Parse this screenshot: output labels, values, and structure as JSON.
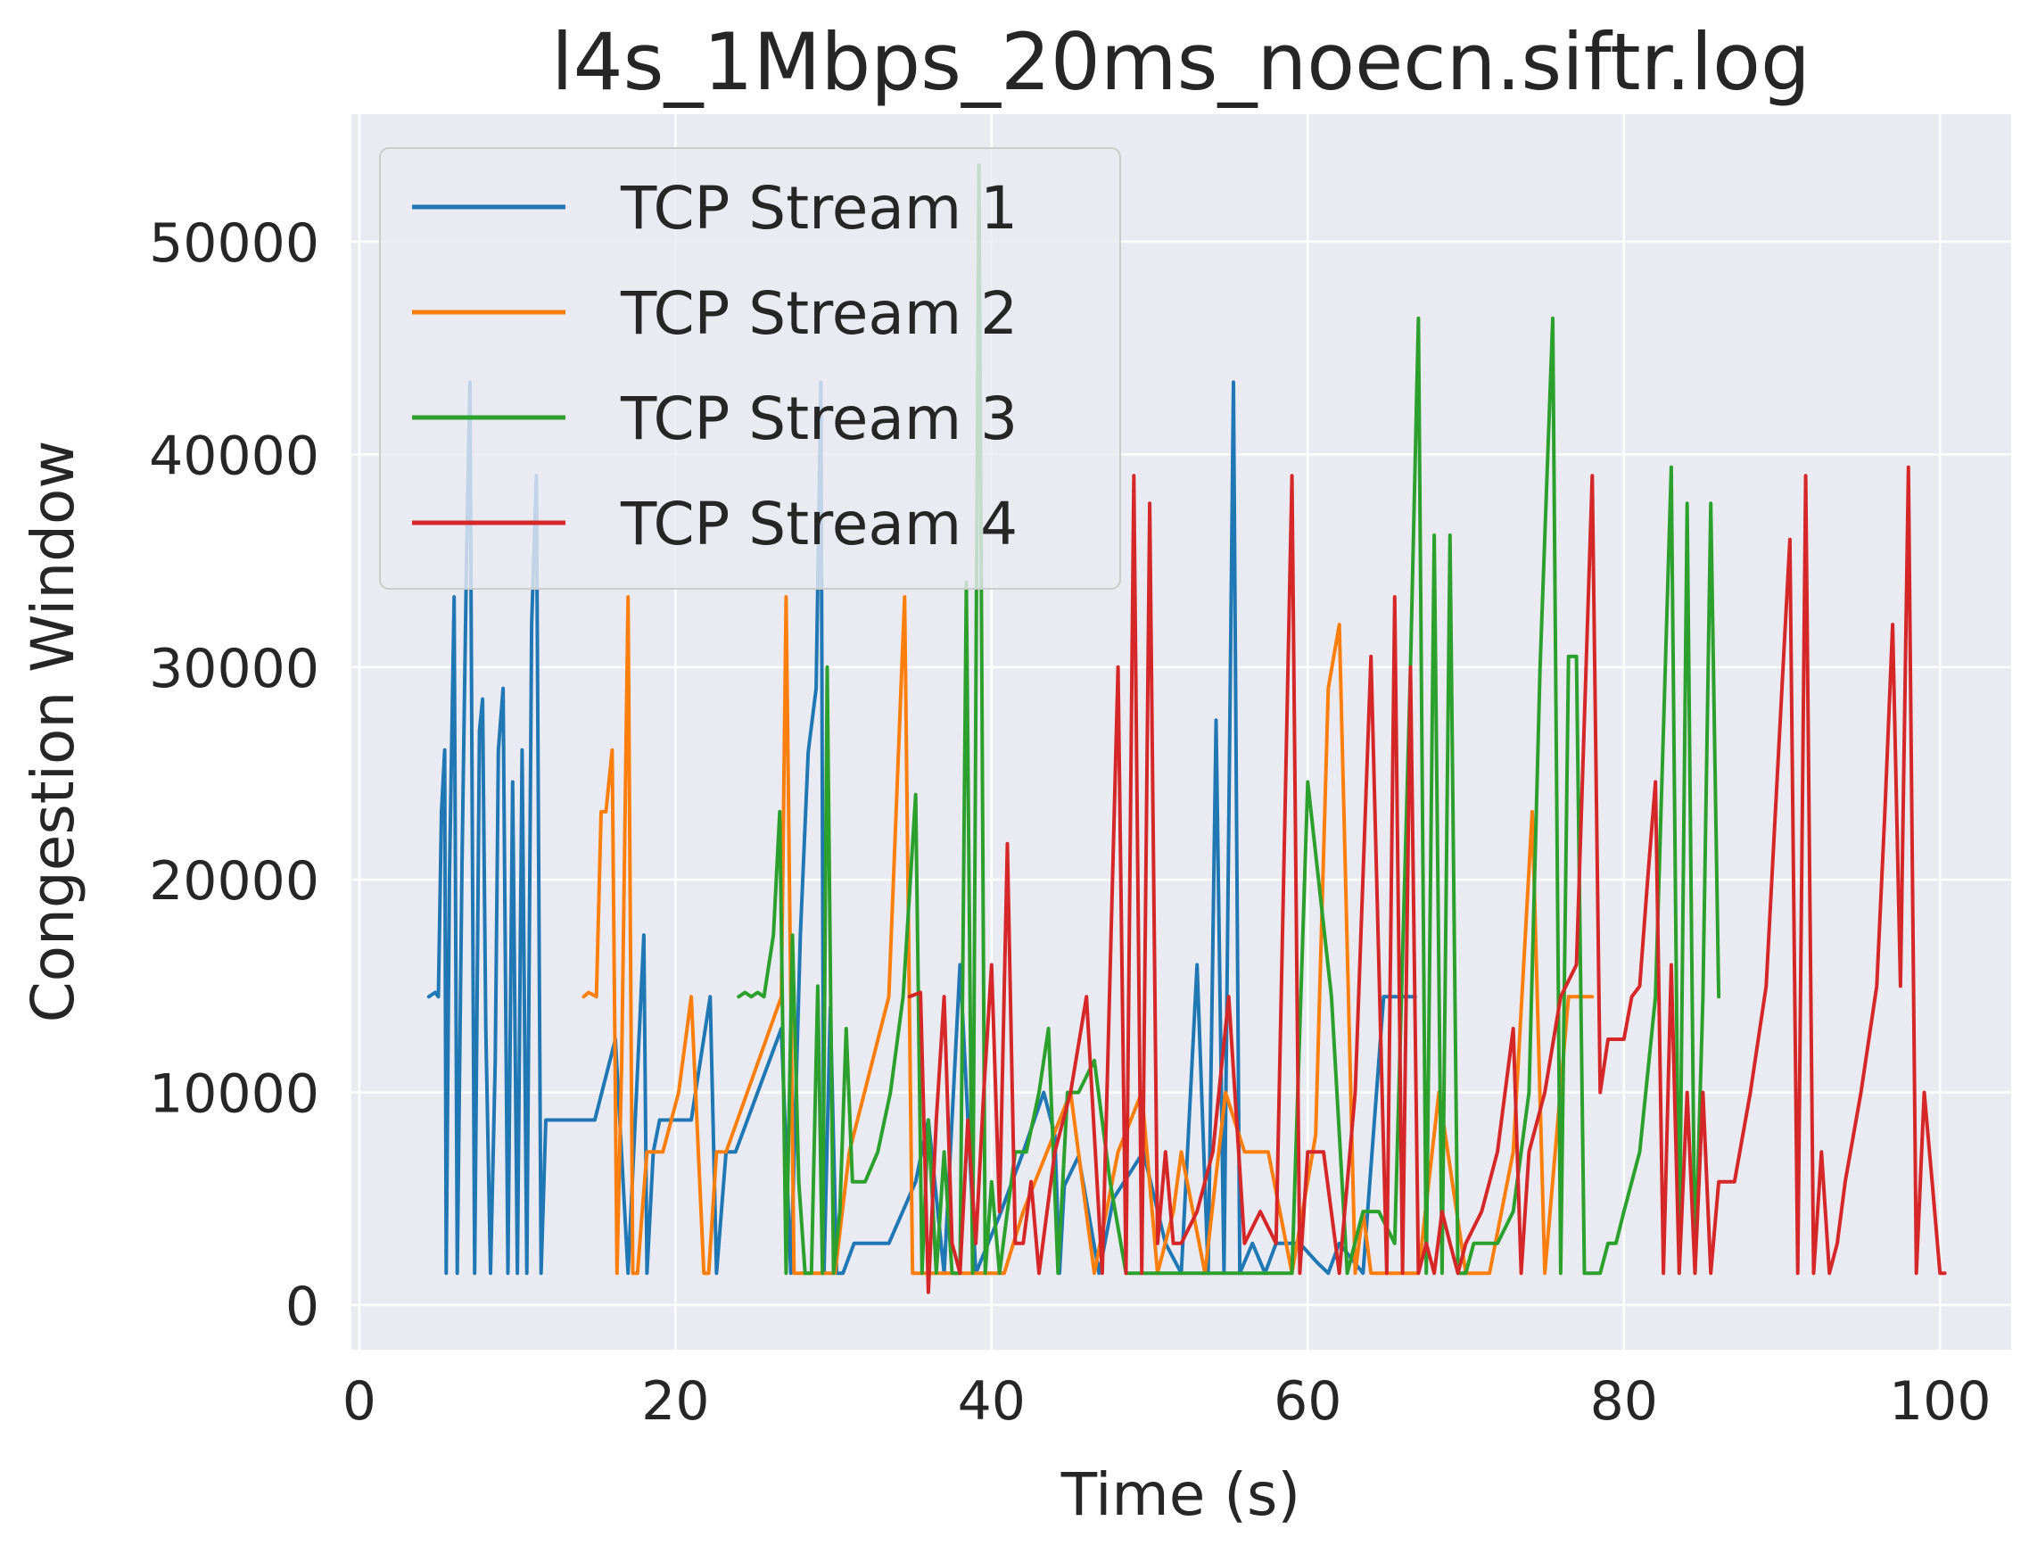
{
  "chart_data": {
    "type": "line",
    "title": "l4s_1Mbps_20ms_noecn.siftr.log",
    "xlabel": "Time (s)",
    "ylabel": "Congestion Window",
    "xlim": [
      -0.5,
      104.5
    ],
    "ylim": [
      -2100,
      56000
    ],
    "x_ticks": [
      0,
      20,
      40,
      60,
      80,
      100
    ],
    "x_tick_labels": [
      "0",
      "20",
      "40",
      "60",
      "80",
      "100"
    ],
    "y_ticks": [
      0,
      10000,
      20000,
      30000,
      40000,
      50000
    ],
    "y_tick_labels": [
      "0",
      "10000",
      "20000",
      "30000",
      "40000",
      "50000"
    ],
    "grid": true,
    "legend": {
      "position": "top-left"
    },
    "series": [
      {
        "name": "TCP Stream 1",
        "color": "#1f77b4",
        "x": [
          4.4,
          4.8,
          5.0,
          5.2,
          5.4,
          5.5,
          5.7,
          6.0,
          6.2,
          6.5,
          6.8,
          7.0,
          7.3,
          7.6,
          7.8,
          8.0,
          8.3,
          8.6,
          8.8,
          9.1,
          9.4,
          9.7,
          10.0,
          10.3,
          10.6,
          10.9,
          11.2,
          11.5,
          11.8,
          12.1,
          12.4,
          12.7,
          12.9,
          13.1,
          13.3,
          14.9,
          16.2,
          17.0,
          18.0,
          18.2,
          18.6,
          19.0,
          19.8,
          21.0,
          22.2,
          22.6,
          23.2,
          23.8,
          26.7,
          27.3,
          27.9,
          28.4,
          28.9,
          29.2,
          29.4,
          29.8,
          30.2,
          30.6,
          31.3,
          33.5,
          35.2,
          36.0,
          37.0,
          38.0,
          39.0,
          40.5,
          42.0,
          43.3,
          44.0,
          44.3,
          44.6,
          45.5,
          46.8,
          47.7,
          49.6,
          51.0,
          52.0,
          53.0,
          53.7,
          54.2,
          54.7,
          55.3,
          55.7,
          56.5,
          57.3,
          58.0,
          59.5,
          60.6,
          61.3,
          62.0,
          63.5,
          64.8,
          65.7,
          66.8
        ],
        "y": [
          14500,
          14700,
          14500,
          23200,
          26100,
          1500,
          20000,
          33300,
          1500,
          21000,
          36000,
          43400,
          1500,
          27000,
          28500,
          13000,
          1500,
          11500,
          26100,
          29000,
          1500,
          24600,
          1500,
          26100,
          1500,
          32000,
          39000,
          1500,
          8700,
          8700,
          8700,
          8700,
          8700,
          8700,
          8700,
          8700,
          12500,
          1500,
          17400,
          1500,
          7200,
          8700,
          8700,
          8700,
          14500,
          1500,
          7200,
          7200,
          13000,
          1500,
          17400,
          26000,
          29000,
          43400,
          1500,
          14000,
          1500,
          1500,
          2900,
          2900,
          5800,
          8700,
          1500,
          16000,
          1500,
          4200,
          7200,
          10000,
          8000,
          1500,
          5600,
          7000,
          1500,
          5000,
          7200,
          2900,
          1500,
          16000,
          1500,
          27500,
          1500,
          43400,
          1500,
          2900,
          1500,
          2900,
          2900,
          2000,
          1500,
          2900,
          1500,
          14500,
          14500,
          14500
        ]
      },
      {
        "name": "TCP Stream 2",
        "color": "#ff7f0e",
        "x": [
          14.2,
          14.5,
          15.0,
          15.3,
          15.6,
          16.0,
          16.3,
          16.6,
          17.0,
          17.3,
          17.6,
          17.9,
          18.2,
          18.6,
          19.2,
          20.2,
          21.0,
          21.8,
          22.1,
          22.6,
          23.2,
          26.7,
          27.0,
          27.5,
          27.9,
          28.5,
          29.0,
          30.1,
          31.0,
          33.5,
          34.5,
          35.0,
          35.5,
          36.0,
          36.3,
          37.5,
          38.0,
          39.2,
          40.8,
          42.0,
          43.5,
          45.0,
          46.5,
          48.0,
          49.5,
          50.5,
          51.5,
          52.0,
          53.5,
          54.8,
          56.0,
          57.5,
          59.0,
          60.5,
          61.3,
          62.0,
          63.0,
          63.5,
          64.0,
          65.5,
          67.0,
          68.3,
          70.0,
          71.5,
          73.0,
          74.2,
          75.0,
          76.5,
          78.0
        ],
        "y": [
          14500,
          14700,
          14500,
          23200,
          23200,
          26100,
          1500,
          11500,
          33300,
          1500,
          1500,
          4400,
          7200,
          7200,
          7200,
          10000,
          14500,
          1500,
          1500,
          7200,
          7200,
          14500,
          33300,
          1500,
          1500,
          1500,
          1500,
          1500,
          7200,
          14500,
          33300,
          1500,
          1500,
          1500,
          1500,
          1500,
          1500,
          1500,
          1500,
          4400,
          7200,
          10000,
          1500,
          7200,
          10000,
          1500,
          4400,
          7200,
          1500,
          10000,
          7200,
          7200,
          1500,
          8000,
          29000,
          32000,
          1500,
          4400,
          1500,
          1500,
          1500,
          10000,
          1500,
          1500,
          7200,
          23200,
          1500,
          14500,
          14500
        ]
      },
      {
        "name": "TCP Stream 3",
        "color": "#2ca02c",
        "x": [
          24.0,
          24.4,
          24.8,
          25.2,
          25.6,
          26.2,
          26.6,
          27.0,
          27.4,
          27.8,
          28.2,
          28.6,
          29.0,
          29.3,
          29.6,
          30.0,
          30.4,
          30.8,
          31.2,
          31.6,
          32.0,
          32.8,
          33.6,
          34.4,
          35.2,
          35.6,
          36.0,
          36.5,
          37.0,
          37.5,
          38.0,
          38.4,
          38.8,
          39.2,
          39.6,
          40.0,
          40.5,
          41.0,
          41.5,
          42.2,
          43.0,
          43.6,
          44.2,
          44.8,
          45.5,
          46.5,
          47.5,
          48.5,
          49.0,
          50.0,
          51.0,
          52.0,
          53.0,
          54.0,
          55.0,
          56.0,
          57.0,
          58.0,
          59.0,
          60.0,
          61.5,
          62.5,
          63.5,
          64.5,
          65.5,
          66.5,
          67.0,
          67.5,
          68.0,
          68.5,
          69.0,
          69.5,
          70.0,
          70.5,
          71.0,
          72.0,
          73.0,
          74.0,
          74.7,
          75.5,
          76.0,
          76.5,
          77.0,
          77.5,
          78.0,
          78.5,
          79.0,
          79.5,
          80.0,
          81.0,
          82.0,
          83.0,
          83.5,
          84.0,
          84.5,
          85.0,
          85.5,
          86.0
        ],
        "y": [
          14500,
          14700,
          14500,
          14700,
          14500,
          17400,
          23200,
          1500,
          17400,
          5800,
          1500,
          1500,
          15000,
          1500,
          30000,
          1500,
          4400,
          13000,
          5800,
          5800,
          5800,
          7200,
          10000,
          14500,
          24000,
          1500,
          8700,
          1500,
          7200,
          1500,
          1500,
          34000,
          1500,
          53600,
          1500,
          5800,
          1500,
          4400,
          7200,
          7200,
          10000,
          13000,
          1500,
          10000,
          10000,
          11500,
          5800,
          1500,
          1500,
          1500,
          1500,
          1500,
          1500,
          1500,
          1500,
          1500,
          1500,
          1500,
          1500,
          24600,
          14500,
          1500,
          4400,
          4400,
          2900,
          30000,
          46400,
          1500,
          36200,
          1500,
          36200,
          1500,
          1500,
          2900,
          2900,
          2900,
          4400,
          10000,
          30000,
          46400,
          1500,
          30500,
          30500,
          1500,
          1500,
          1500,
          2900,
          2900,
          4400,
          7200,
          14500,
          39400,
          1500,
          37700,
          1500,
          14500,
          37700,
          14500
        ]
      },
      {
        "name": "TCP Stream 4",
        "color": "#d62728",
        "x": [
          34.8,
          35.5,
          36.0,
          36.5,
          37.0,
          37.5,
          38.0,
          38.5,
          39.0,
          39.5,
          40.0,
          40.5,
          41.0,
          41.5,
          42.0,
          42.5,
          43.0,
          44.0,
          45.0,
          46.0,
          47.0,
          48.0,
          48.5,
          49.0,
          49.5,
          50.0,
          50.5,
          51.0,
          51.5,
          52.0,
          53.0,
          54.0,
          55.0,
          56.0,
          57.0,
          58.0,
          59.0,
          59.5,
          60.0,
          61.0,
          62.0,
          63.0,
          64.0,
          65.0,
          65.5,
          66.0,
          66.5,
          67.0,
          67.5,
          68.0,
          68.5,
          69.0,
          69.5,
          70.0,
          71.0,
          72.0,
          73.0,
          73.5,
          74.0,
          75.0,
          76.0,
          77.0,
          78.0,
          78.5,
          79.0,
          79.5,
          80.0,
          80.5,
          81.0,
          81.5,
          82.0,
          82.5,
          83.0,
          83.5,
          84.0,
          84.5,
          85.0,
          85.5,
          86.0,
          87.0,
          88.0,
          89.0,
          90.0,
          90.5,
          91.0,
          91.5,
          92.0,
          92.5,
          93.0,
          93.5,
          94.0,
          95.0,
          96.0,
          96.5,
          97.0,
          97.5,
          98.0,
          98.5,
          99.0,
          99.5,
          100.0,
          100.3
        ],
        "y": [
          14500,
          14700,
          600,
          8700,
          14500,
          2900,
          1500,
          8700,
          2900,
          10000,
          16000,
          4400,
          21700,
          2900,
          2900,
          5800,
          1500,
          7200,
          10000,
          14500,
          1500,
          30000,
          1500,
          39000,
          1500,
          37700,
          2900,
          7200,
          2900,
          2900,
          4400,
          7200,
          14500,
          2900,
          4400,
          2900,
          39000,
          1500,
          7200,
          7200,
          1500,
          10000,
          30500,
          1500,
          33300,
          1500,
          30000,
          1500,
          2900,
          1500,
          4400,
          2900,
          1500,
          2900,
          4400,
          7200,
          13000,
          1500,
          7200,
          10000,
          14500,
          16000,
          39000,
          10000,
          12500,
          12500,
          12500,
          14500,
          15000,
          20000,
          24600,
          1500,
          16000,
          1500,
          10000,
          1500,
          10000,
          1500,
          5800,
          5800,
          10000,
          15000,
          29000,
          36000,
          1500,
          39000,
          1500,
          7200,
          1500,
          2900,
          5800,
          10000,
          15000,
          23000,
          32000,
          15000,
          39400,
          1500,
          10000,
          5800,
          1500,
          1500
        ]
      }
    ]
  }
}
